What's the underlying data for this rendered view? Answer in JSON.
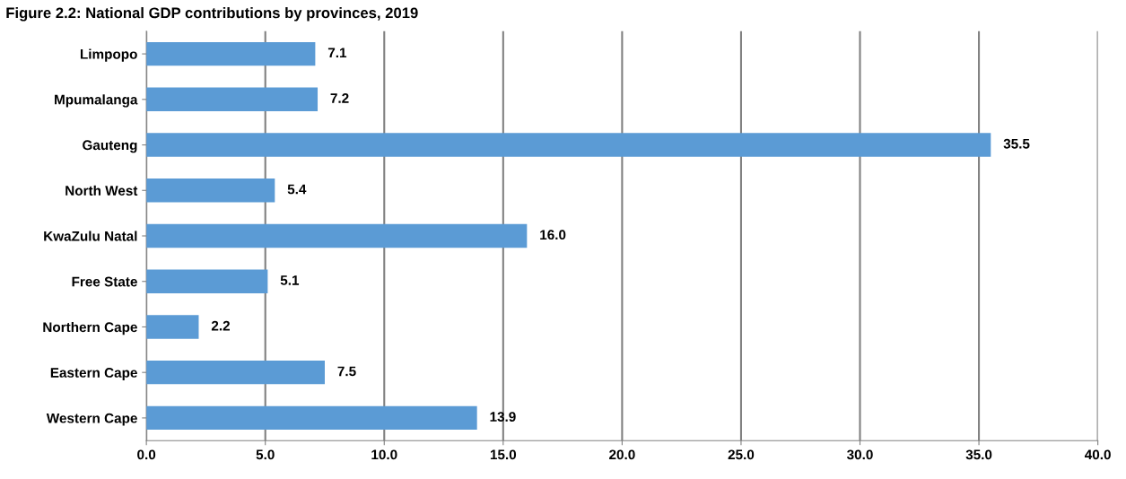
{
  "chart_data": {
    "type": "bar",
    "orientation": "horizontal",
    "title": "Figure 2.2: National GDP contributions by provinces, 2019",
    "categories": [
      "Limpopo",
      "Mpumalanga",
      "Gauteng",
      "North West",
      "KwaZulu Natal",
      "Free State",
      "Northern Cape",
      "Eastern Cape",
      "Western Cape"
    ],
    "values": [
      7.1,
      7.2,
      35.5,
      5.4,
      16.0,
      5.1,
      2.2,
      7.5,
      13.9
    ],
    "value_labels": [
      "7.1",
      "7.2",
      "35.5",
      "5.4",
      "16.0",
      "5.1",
      "2.2",
      "7.5",
      "13.9"
    ],
    "color": "#5b9bd5",
    "xlim": [
      0,
      40
    ],
    "xticks": [
      {
        "value": 0,
        "label": "0.0"
      },
      {
        "value": 5,
        "label": "5.0"
      },
      {
        "value": 10,
        "label": "10.0"
      },
      {
        "value": 15,
        "label": "15.0"
      },
      {
        "value": 20,
        "label": "20.0"
      },
      {
        "value": 25,
        "label": "25.0"
      },
      {
        "value": 30,
        "label": "30.0"
      },
      {
        "value": 35,
        "label": "35.0"
      },
      {
        "value": 40,
        "label": "40.0"
      }
    ],
    "grid": "x",
    "legend": false
  }
}
